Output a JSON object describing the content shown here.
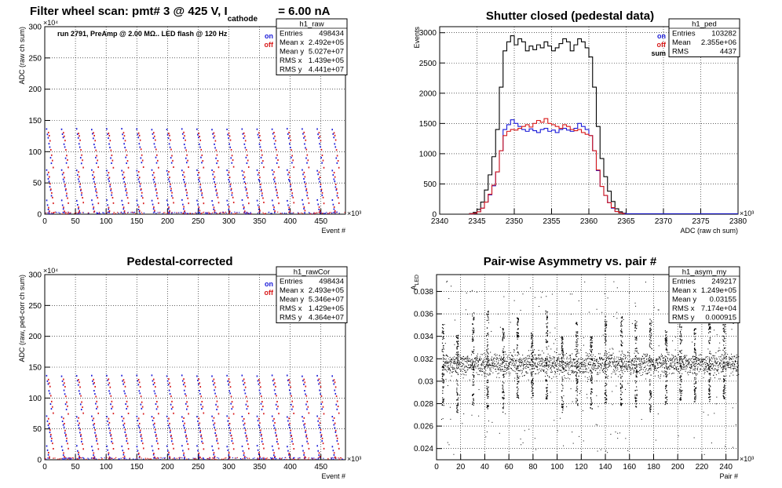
{
  "page_title": {
    "prefix": "Filter wheel scan: pmt#   3 @   425 V, I",
    "subscript": "cathode",
    "suffix": "= 6.00 nA"
  },
  "chart_data": [
    {
      "id": "raw",
      "type": "scatter",
      "title": "",
      "annotation": "run 2791, PreAmp @ 2.00 MΩ.. LED flash @  120 Hz",
      "xlabel": "Event #",
      "ylabel": "ADC (raw ch sum)",
      "x_exponent": "×10³",
      "y_exponent": "×10⁴",
      "xlim": [
        0,
        490
      ],
      "ylim": [
        0,
        300
      ],
      "xticks": [
        0,
        50,
        100,
        150,
        200,
        250,
        300,
        350,
        400,
        450
      ],
      "yticks": [
        0,
        50,
        100,
        150,
        200,
        250,
        300
      ],
      "legend": [
        {
          "label": "on",
          "color": "#1a1ad8"
        },
        {
          "label": "off",
          "color": "#d81a1a"
        }
      ],
      "stats": {
        "name": "h1_raw",
        "rows": [
          [
            "Entries",
            "498434"
          ],
          [
            "Mean x",
            "2.492e+05"
          ],
          [
            "Mean y",
            "5.027e+07"
          ],
          [
            "RMS x",
            "1.439e+05"
          ],
          [
            "RMS y",
            "4.441e+07"
          ]
        ]
      },
      "levels_on": [
        136,
        128,
        122,
        112,
        107,
        90,
        82,
        70,
        63,
        56,
        52,
        44,
        38,
        30,
        22,
        15,
        8,
        3
      ],
      "levels_off": [
        130,
        125,
        118,
        103,
        94,
        86,
        75,
        67,
        59,
        48,
        40,
        34,
        26,
        18,
        11,
        5
      ],
      "cycle_period": 24.5,
      "grid": true
    },
    {
      "id": "ped",
      "type": "histogram",
      "title": "Shutter closed (pedestal data)",
      "xlabel": "ADC (raw ch sum)",
      "ylabel": "Events",
      "x_exponent": "×10³",
      "xlim": [
        2340,
        2380
      ],
      "ylim": [
        0,
        3100
      ],
      "xticks": [
        2340,
        2345,
        2350,
        2355,
        2360,
        2365,
        2370,
        2375,
        2380
      ],
      "yticks": [
        0,
        500,
        1000,
        1500,
        2000,
        2500,
        3000
      ],
      "legend": [
        {
          "label": "on",
          "color": "#1a1ad8"
        },
        {
          "label": "off",
          "color": "#d81a1a"
        },
        {
          "label": "sum",
          "color": "#000000"
        }
      ],
      "stats": {
        "name": "h1_ped",
        "rows": [
          [
            "Entries",
            "103282"
          ],
          [
            "Mean",
            "2.355e+06"
          ],
          [
            "RMS",
            "4437"
          ]
        ]
      },
      "bin_edges_start": 2344,
      "bin_width": 0.5,
      "series": [
        {
          "name": "sum",
          "color": "#000000",
          "values": [
            10,
            30,
            80,
            200,
            400,
            650,
            950,
            1400,
            2100,
            2700,
            2850,
            2950,
            2800,
            2900,
            2850,
            2700,
            2780,
            2720,
            2800,
            2750,
            2850,
            2780,
            2700,
            2750,
            2820,
            2900,
            2850,
            2700,
            2800,
            2900,
            2850,
            2750,
            2600,
            2100,
            1450,
            920,
            620,
            380,
            210,
            90,
            40,
            15
          ]
        },
        {
          "name": "on",
          "color": "#1a1ad8",
          "values": [
            5,
            15,
            40,
            100,
            200,
            320,
            470,
            700,
            1050,
            1400,
            1480,
            1560,
            1500,
            1450,
            1400,
            1370,
            1410,
            1380,
            1350,
            1400,
            1420,
            1370,
            1390,
            1350,
            1400,
            1420,
            1390,
            1370,
            1420,
            1500,
            1450,
            1400,
            1300,
            1050,
            720,
            460,
            310,
            190,
            100,
            45,
            20,
            7
          ]
        },
        {
          "name": "off",
          "color": "#d81a1a",
          "values": [
            5,
            15,
            40,
            100,
            200,
            330,
            480,
            700,
            1050,
            1300,
            1370,
            1400,
            1390,
            1420,
            1450,
            1480,
            1440,
            1500,
            1550,
            1520,
            1580,
            1500,
            1480,
            1450,
            1420,
            1480,
            1450,
            1400,
            1380,
            1400,
            1350,
            1320,
            1300,
            1050,
            730,
            460,
            310,
            190,
            110,
            45,
            20,
            8
          ]
        }
      ],
      "grid": true
    },
    {
      "id": "rawcor",
      "type": "scatter",
      "title": "Pedestal-corrected",
      "xlabel": "Event #",
      "ylabel": "ADC (raw, ped-corr ch sum)",
      "x_exponent": "×10³",
      "y_exponent": "×10⁴",
      "xlim": [
        0,
        490
      ],
      "ylim": [
        0,
        300
      ],
      "xticks": [
        0,
        50,
        100,
        150,
        200,
        250,
        300,
        350,
        400,
        450
      ],
      "yticks": [
        0,
        50,
        100,
        150,
        200,
        250,
        300
      ],
      "legend": [
        {
          "label": "on",
          "color": "#1a1ad8"
        },
        {
          "label": "off",
          "color": "#d81a1a"
        }
      ],
      "stats": {
        "name": "h1_rawCor",
        "rows": [
          [
            "Entries",
            "498434"
          ],
          [
            "Mean x",
            "2.493e+05"
          ],
          [
            "Mean y",
            "5.346e+07"
          ],
          [
            "RMS x",
            "1.429e+05"
          ],
          [
            "RMS y",
            "4.364e+07"
          ]
        ]
      },
      "levels_on": [
        136,
        128,
        122,
        112,
        107,
        90,
        82,
        70,
        63,
        56,
        52,
        44,
        38,
        30,
        22,
        15,
        8,
        3
      ],
      "levels_off": [
        130,
        125,
        118,
        103,
        94,
        86,
        75,
        67,
        59,
        48,
        40,
        34,
        26,
        18,
        11,
        5
      ],
      "cycle_period": 24.5,
      "grid": true
    },
    {
      "id": "asym",
      "type": "scatter",
      "title": "Pair-wise Asymmetry vs. pair #",
      "xlabel": "Pair #",
      "ylabel": "A",
      "ylabel_sub": "LED",
      "x_exponent": "×10³",
      "xlim": [
        0,
        250
      ],
      "ylim": [
        0.023,
        0.0395
      ],
      "xticks": [
        0,
        20,
        40,
        60,
        80,
        100,
        120,
        140,
        160,
        180,
        200,
        220,
        240
      ],
      "yticks": [
        0.024,
        0.026,
        0.028,
        0.03,
        0.032,
        0.034,
        0.036,
        0.038
      ],
      "ytick_labels": [
        "0.024",
        "0.026",
        "0.028",
        "0.03",
        "0.032",
        "0.034",
        "0.036",
        "0.038"
      ],
      "stats": {
        "name": "h1_asym_my",
        "rows": [
          [
            "Entries",
            "249217"
          ],
          [
            "Mean x",
            "1.249e+05"
          ],
          [
            "Mean y",
            "0.03155"
          ],
          [
            "RMS x",
            "7.174e+04"
          ],
          [
            "RMS y",
            "0.000915"
          ]
        ]
      },
      "band_center": 0.03155,
      "band_halfwidth": 0.0009,
      "spike_x": [
        5,
        17,
        30,
        42,
        55,
        67,
        79,
        91,
        104,
        116,
        128,
        140,
        153,
        165,
        177,
        190,
        202,
        214,
        226,
        238
      ],
      "grid": true
    }
  ]
}
